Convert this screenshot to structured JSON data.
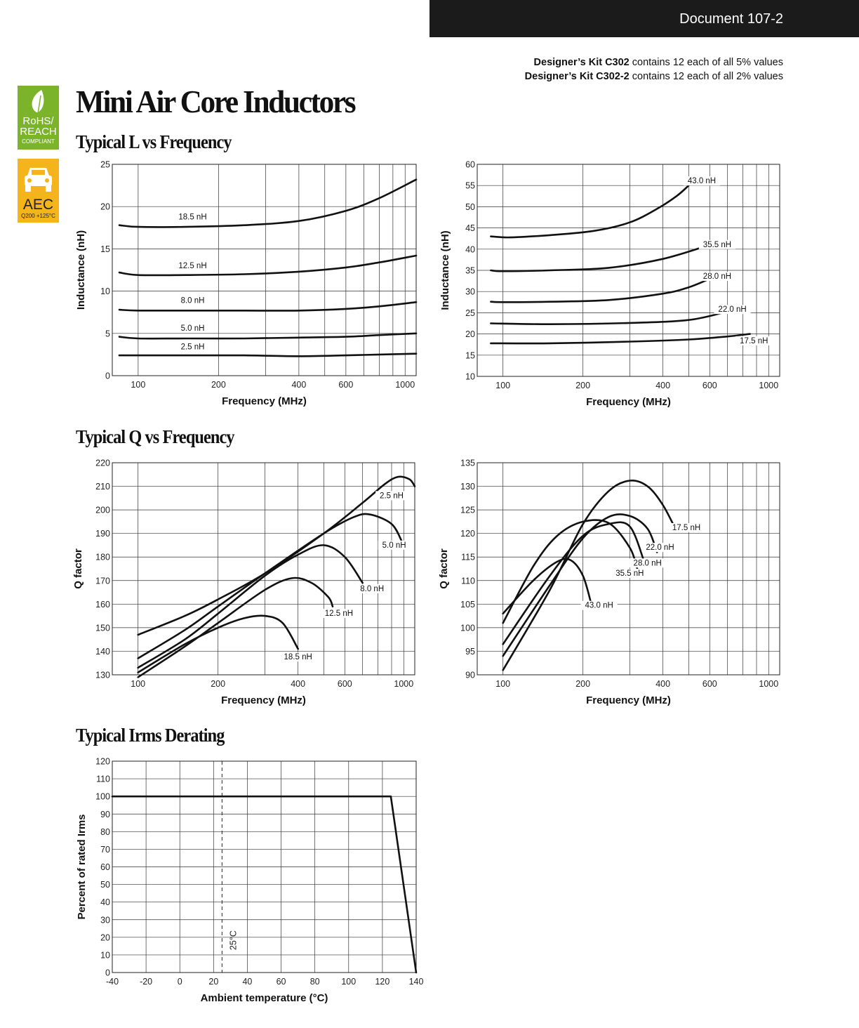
{
  "header": {
    "document_number": "Document 107-2"
  },
  "kits": [
    {
      "name": "Designer’s Kit C302",
      "text": " contains 12 each of all 5% values"
    },
    {
      "name": "Designer’s Kit C302-2",
      "text": " contains 12 each of all 2% values"
    }
  ],
  "badges": {
    "rohs": {
      "line1": "RoHS/",
      "line2": "REACH",
      "line3": "COMPLIANT"
    },
    "aec": {
      "line1": "AEC",
      "line2": "Q200 +125°C"
    }
  },
  "title": "Mini Air Core Inductors",
  "sections": {
    "l_vs_freq": "Typical L vs Frequency",
    "q_vs_freq": "Typical Q vs Frequency",
    "irms": "Typical Irms Derating"
  },
  "chart_data": [
    {
      "id": "l-low",
      "type": "line",
      "xscale": "log",
      "xlabel": "Frequency (MHz)",
      "ylabel": "Inductance (nH)",
      "xlim": [
        80,
        1100
      ],
      "ylim": [
        0,
        25
      ],
      "xticks": [
        100,
        200,
        400,
        600,
        1000
      ],
      "yticks": [
        0,
        5,
        10,
        15,
        20,
        25
      ],
      "xgrid": [
        100,
        200,
        300,
        400,
        500,
        600,
        700,
        800,
        900,
        1000
      ],
      "series": [
        {
          "name": "18.5 nH",
          "x": [
            85,
            100,
            150,
            250,
            400,
            600,
            800,
            1100
          ],
          "y": [
            17.8,
            17.6,
            17.6,
            17.8,
            18.3,
            19.5,
            21.0,
            23.2
          ]
        },
        {
          "name": "12.5 nH",
          "x": [
            85,
            100,
            150,
            250,
            400,
            600,
            800,
            1100
          ],
          "y": [
            12.2,
            11.9,
            11.9,
            12.0,
            12.3,
            12.8,
            13.4,
            14.2
          ]
        },
        {
          "name": "8.0 nH",
          "x": [
            85,
            100,
            150,
            250,
            400,
            600,
            800,
            1100
          ],
          "y": [
            7.8,
            7.7,
            7.7,
            7.7,
            7.7,
            7.9,
            8.2,
            8.7
          ]
        },
        {
          "name": "5.0 nH",
          "x": [
            85,
            100,
            150,
            250,
            400,
            600,
            800,
            1100
          ],
          "y": [
            4.6,
            4.4,
            4.4,
            4.4,
            4.5,
            4.6,
            4.8,
            5.0
          ]
        },
        {
          "name": "2.5 nH",
          "x": [
            85,
            100,
            150,
            250,
            400,
            600,
            800,
            1100
          ],
          "y": [
            2.4,
            2.4,
            2.4,
            2.4,
            2.3,
            2.4,
            2.5,
            2.6
          ]
        }
      ],
      "labels": [
        {
          "text": "18.5 nH",
          "x": 160,
          "y": 18.5
        },
        {
          "text": "12.5 nH",
          "x": 160,
          "y": 12.7
        },
        {
          "text": "8.0 nH",
          "x": 160,
          "y": 8.6
        },
        {
          "text": "5.0 nH",
          "x": 160,
          "y": 5.3
        },
        {
          "text": "2.5 nH",
          "x": 160,
          "y": 3.1
        }
      ]
    },
    {
      "id": "l-high",
      "type": "line",
      "xscale": "log",
      "xlabel": "Frequency (MHz)",
      "ylabel": "Inductance (nH)",
      "xlim": [
        80,
        1100
      ],
      "ylim": [
        10,
        60
      ],
      "xticks": [
        100,
        200,
        400,
        600,
        1000
      ],
      "yticks": [
        10,
        15,
        20,
        25,
        30,
        35,
        40,
        45,
        50,
        55,
        60
      ],
      "xgrid": [
        100,
        200,
        300,
        400,
        500,
        600,
        700,
        800,
        900,
        1000
      ],
      "series": [
        {
          "name": "43.0 nH",
          "x": [
            90,
            100,
            110,
            150,
            220,
            300,
            380,
            450,
            500
          ],
          "y": [
            43.0,
            42.8,
            42.8,
            43.3,
            44.3,
            46.3,
            49.5,
            52.5,
            55.0
          ]
        },
        {
          "name": "35.5 nH",
          "x": [
            90,
            100,
            150,
            250,
            400,
            600
          ],
          "y": [
            35.0,
            34.8,
            35.0,
            35.6,
            37.7,
            41.0
          ]
        },
        {
          "name": "28.0 nH",
          "x": [
            90,
            100,
            150,
            250,
            400,
            500,
            600
          ],
          "y": [
            27.6,
            27.5,
            27.6,
            28.0,
            29.5,
            31.0,
            33.0
          ]
        },
        {
          "name": "22.0 nH",
          "x": [
            90,
            150,
            300,
            500,
            700
          ],
          "y": [
            22.5,
            22.3,
            22.6,
            23.3,
            25.3
          ]
        },
        {
          "name": "17.5 nH",
          "x": [
            90,
            150,
            300,
            500,
            700,
            850
          ],
          "y": [
            17.8,
            17.8,
            18.2,
            18.7,
            19.4,
            20.0
          ]
        }
      ],
      "labels": [
        {
          "text": "43.0 nH",
          "x": 560,
          "y": 55.5
        },
        {
          "text": "35.5 nH",
          "x": 640,
          "y": 40.5
        },
        {
          "text": "28.0 nH",
          "x": 640,
          "y": 33.0
        },
        {
          "text": "22.0 nH",
          "x": 730,
          "y": 25.2
        },
        {
          "text": "17.5 nH",
          "x": 880,
          "y": 17.8
        }
      ]
    },
    {
      "id": "q-low",
      "type": "line",
      "xscale": "log",
      "xlabel": "Frequency (MHz)",
      "ylabel": "Q factor",
      "xlim": [
        80,
        1100
      ],
      "ylim": [
        130,
        220
      ],
      "xticks": [
        100,
        200,
        400,
        600,
        1000
      ],
      "yticks": [
        130,
        140,
        150,
        160,
        170,
        180,
        190,
        200,
        210,
        220
      ],
      "xgrid": [
        100,
        200,
        300,
        400,
        500,
        600,
        700,
        800,
        900,
        1000
      ],
      "series": [
        {
          "name": "2.5 nH",
          "x": [
            100,
            150,
            200,
            300,
            500,
            700,
            850,
            950,
            1050,
            1100
          ],
          "y": [
            147,
            155,
            162,
            173,
            190,
            203,
            211,
            214,
            213,
            210
          ]
        },
        {
          "name": "5.0 nH",
          "x": [
            100,
            150,
            200,
            300,
            500,
            650,
            750,
            900,
            980
          ],
          "y": [
            137,
            149,
            159,
            173,
            190,
            197,
            198,
            194,
            187
          ]
        },
        {
          "name": "8.0 nH",
          "x": [
            100,
            150,
            200,
            300,
            400,
            500,
            600,
            700
          ],
          "y": [
            133,
            145,
            156,
            172,
            181,
            185,
            180,
            169
          ]
        },
        {
          "name": "12.5 nH",
          "x": [
            100,
            150,
            200,
            300,
            380,
            450,
            520,
            540
          ],
          "y": [
            129,
            142,
            152,
            166,
            171,
            169,
            163,
            159
          ]
        },
        {
          "name": "18.5 nH",
          "x": [
            100,
            150,
            200,
            250,
            300,
            350,
            400
          ],
          "y": [
            131,
            143,
            150,
            154,
            155,
            152,
            141
          ]
        }
      ],
      "labels": [
        {
          "text": "2.5 nH",
          "x": 900,
          "y": 205
        },
        {
          "text": "5.0 nH",
          "x": 920,
          "y": 184
        },
        {
          "text": "8.0 nH",
          "x": 760,
          "y": 165.5
        },
        {
          "text": "12.5 nH",
          "x": 570,
          "y": 155
        },
        {
          "text": "18.5 nH",
          "x": 400,
          "y": 136.5
        }
      ]
    },
    {
      "id": "q-high",
      "type": "line",
      "xscale": "log",
      "xlabel": "Frequency (MHz)",
      "ylabel": "Q factor",
      "xlim": [
        80,
        1100
      ],
      "ylim": [
        90,
        135
      ],
      "xticks": [
        100,
        200,
        400,
        600,
        1000
      ],
      "yticks": [
        90,
        95,
        100,
        105,
        110,
        115,
        120,
        125,
        130,
        135
      ],
      "xgrid": [
        100,
        200,
        300,
        400,
        500,
        600,
        700,
        800,
        900,
        1000
      ],
      "series": [
        {
          "name": "17.5 nH",
          "x": [
            100,
            150,
            200,
            250,
            300,
            350,
            400,
            450
          ],
          "y": [
            91,
            108,
            122,
            129,
            131.2,
            130,
            126,
            120.5
          ]
        },
        {
          "name": "22.0 nH",
          "x": [
            100,
            150,
            200,
            250,
            300,
            350,
            380
          ],
          "y": [
            94,
            109,
            119,
            123.5,
            123.7,
            121,
            116
          ]
        },
        {
          "name": "28.0 nH",
          "x": [
            100,
            150,
            200,
            250,
            300,
            340
          ],
          "y": [
            96.5,
            111,
            119.5,
            122,
            121.5,
            114
          ]
        },
        {
          "name": "35.5 nH",
          "x": [
            100,
            130,
            160,
            200,
            250,
            300,
            320
          ],
          "y": [
            101,
            113,
            119.5,
            122.5,
            122.2,
            117,
            112.5
          ]
        },
        {
          "name": "43.0 nH",
          "x": [
            100,
            130,
            160,
            180,
            200,
            215
          ],
          "y": [
            103,
            110,
            114,
            114.3,
            111,
            105
          ]
        }
      ],
      "labels": [
        {
          "text": "17.5 nH",
          "x": 490,
          "y": 120.7
        },
        {
          "text": "22.0 nH",
          "x": 390,
          "y": 116.5
        },
        {
          "text": "28.0 nH",
          "x": 350,
          "y": 113.2
        },
        {
          "text": "35.5 nH",
          "x": 300,
          "y": 111.0
        },
        {
          "text": "43.0 nH",
          "x": 230,
          "y": 104.2
        }
      ]
    },
    {
      "id": "irms",
      "type": "line",
      "xscale": "linear",
      "xlabel": "Ambient temperature (°C)",
      "ylabel": "Percent of rated Irms",
      "xlim": [
        -40,
        140
      ],
      "ylim": [
        0,
        120
      ],
      "xticks": [
        -40,
        -20,
        0,
        20,
        40,
        60,
        80,
        100,
        120,
        140
      ],
      "yticks": [
        0,
        10,
        20,
        30,
        40,
        50,
        60,
        70,
        80,
        90,
        100,
        110,
        120
      ],
      "xgrid": [
        -20,
        0,
        20,
        40,
        60,
        80,
        100,
        120
      ],
      "series": [
        {
          "name": "Percent of rated Irms",
          "x": [
            -40,
            125,
            140
          ],
          "y": [
            100,
            100,
            0
          ]
        }
      ],
      "marker": {
        "x": 25,
        "text": "25°C"
      }
    }
  ]
}
